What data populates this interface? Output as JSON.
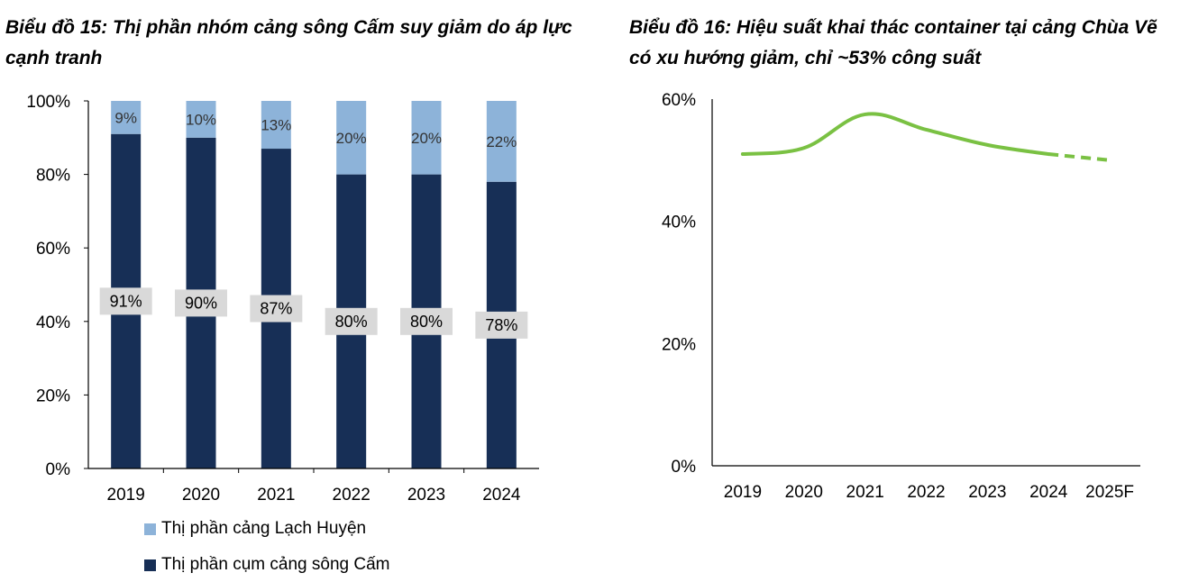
{
  "chart_data": [
    {
      "type": "bar",
      "stacked": true,
      "title": "Biểu đồ 15: Thị phần nhóm cảng sông Cấm suy giảm do áp lực cạnh tranh",
      "categories": [
        "2019",
        "2020",
        "2021",
        "2022",
        "2023",
        "2024"
      ],
      "series": [
        {
          "name": "Thị phần cụm cảng sông Cấm",
          "values": [
            91,
            90,
            87,
            80,
            80,
            78
          ],
          "labels": [
            "91%",
            "90%",
            "87%",
            "80%",
            "80%",
            "78%"
          ],
          "color": "#172f56"
        },
        {
          "name": "Thị phần cảng Lạch Huyện",
          "values": [
            9,
            10,
            13,
            20,
            20,
            22
          ],
          "labels": [
            "9%",
            "10%",
            "13%",
            "20%",
            "20%",
            "22%"
          ],
          "color": "#8db3d9"
        }
      ],
      "ylim": [
        0,
        100
      ],
      "yticks": [
        0,
        20,
        40,
        60,
        80,
        100
      ],
      "ytick_labels": [
        "0%",
        "20%",
        "40%",
        "60%",
        "80%",
        "100%"
      ],
      "grid": false,
      "legend_position": "bottom"
    },
    {
      "type": "line",
      "title": "Biểu đồ 16: Hiệu suất khai thác container tại cảng Chùa Vẽ có xu hướng giảm, chỉ ~53% công suất",
      "x": [
        "2019",
        "2020",
        "2021",
        "2022",
        "2023",
        "2024",
        "2025F"
      ],
      "series": [
        {
          "values": [
            51,
            52,
            57.5,
            55,
            52.5,
            51,
            50
          ],
          "color": "#7ac143",
          "dashed_from": "2024"
        }
      ],
      "ylim": [
        0,
        60
      ],
      "yticks": [
        0,
        20,
        40,
        60
      ],
      "ytick_labels": [
        "0%",
        "20%",
        "40%",
        "60%"
      ],
      "grid": false
    }
  ]
}
